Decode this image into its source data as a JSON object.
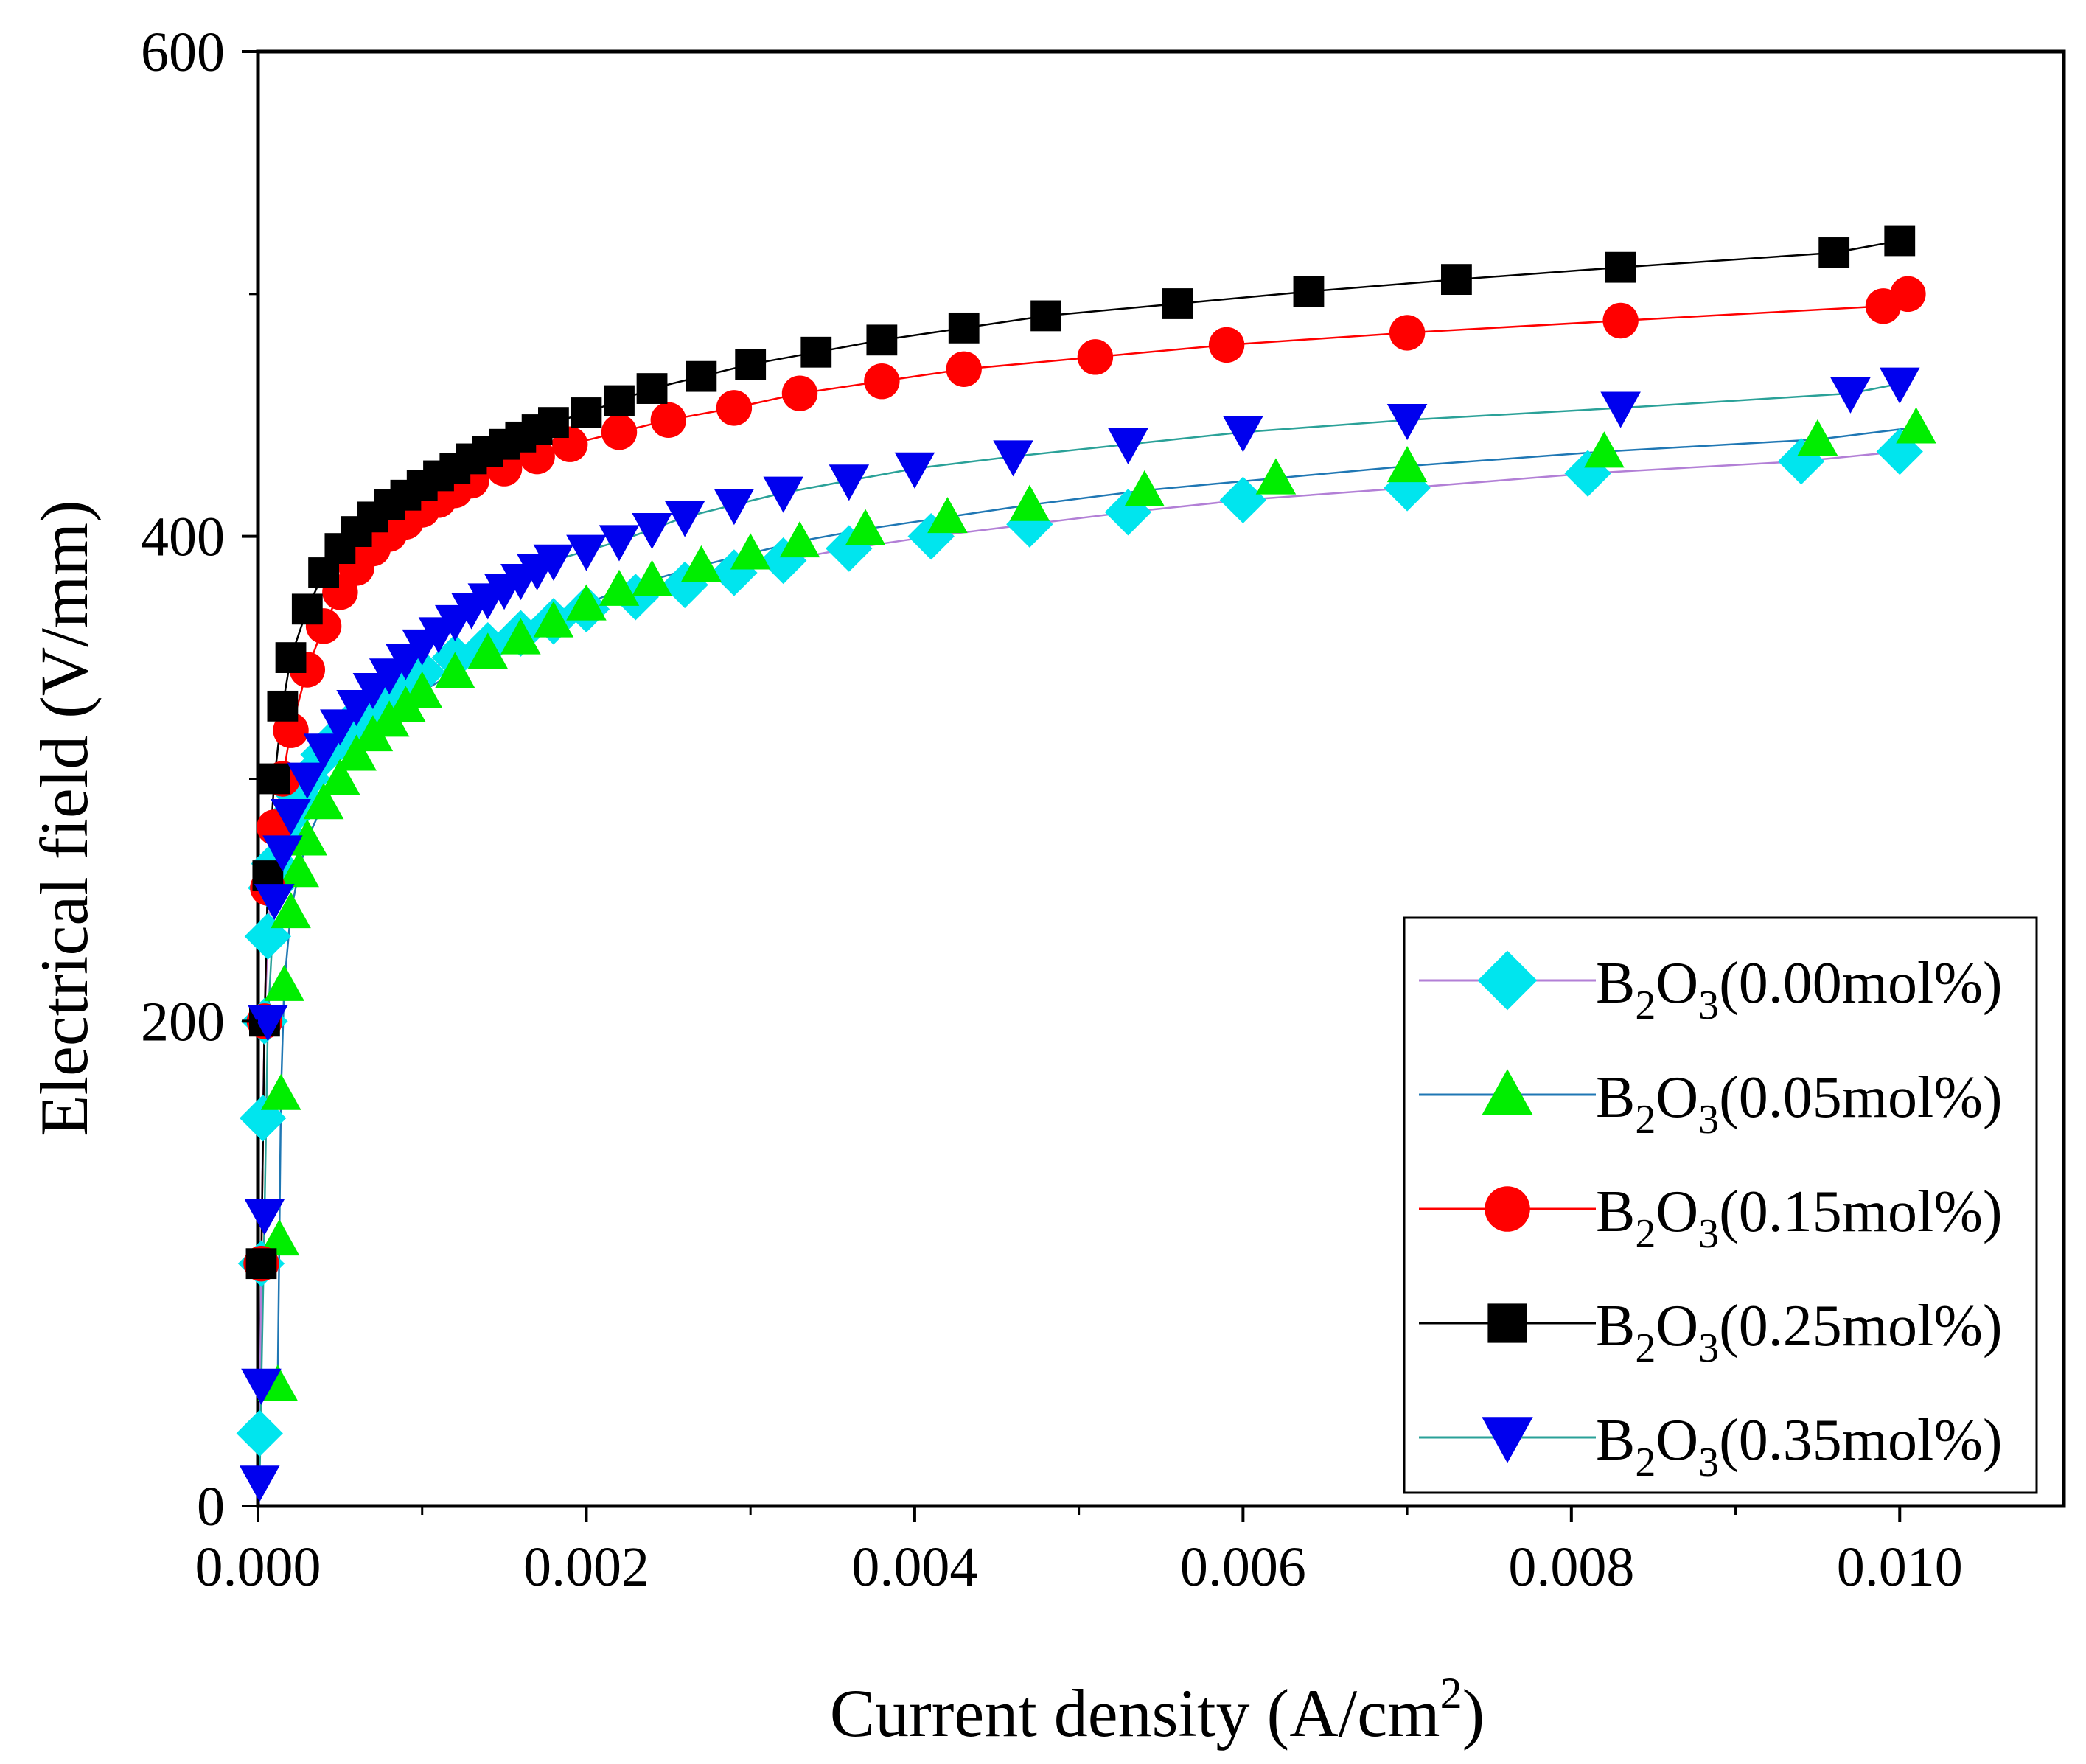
{
  "chart_data": {
    "type": "line",
    "title": "",
    "xlabel": "Current density (A/cm",
    "xlabel_superscript": "2",
    "xlabel_close": ")",
    "ylabel": "Electrical field (V/mm)",
    "xlim": [
      0,
      0.011
    ],
    "ylim": [
      0,
      600
    ],
    "xticks": [
      "0.000",
      "0.002",
      "0.004",
      "0.006",
      "0.008",
      "0.010"
    ],
    "xtick_values": [
      0,
      0.002,
      0.004,
      0.006,
      0.008,
      0.01
    ],
    "yticks": [
      "0",
      "200",
      "400",
      "600"
    ],
    "ytick_values": [
      0,
      200,
      400,
      600
    ],
    "grid": false,
    "legend_position": "bottom-right",
    "series": [
      {
        "name": "B2O3(0.00mol%)",
        "legend": {
          "base": "B",
          "sub1": "2",
          "mid": "O",
          "sub2": "3",
          "rest": "(0.00mol%)"
        },
        "marker": "diamond",
        "marker_color": "#00e5ee",
        "line_color": "#b27fd6",
        "points": [
          [
            1e-05,
            30
          ],
          [
            2e-05,
            100
          ],
          [
            3e-05,
            160
          ],
          [
            4e-05,
            200
          ],
          [
            6e-05,
            235
          ],
          [
            8e-05,
            255
          ],
          [
            0.0001,
            265
          ],
          [
            0.00015,
            277
          ],
          [
            0.0002,
            285
          ],
          [
            0.00025,
            293
          ],
          [
            0.0003,
            300
          ],
          [
            0.0004,
            310
          ],
          [
            0.0005,
            318
          ],
          [
            0.0006,
            325
          ],
          [
            0.0007,
            331
          ],
          [
            0.0008,
            336
          ],
          [
            0.0009,
            340
          ],
          [
            0.001,
            344
          ],
          [
            0.0012,
            350
          ],
          [
            0.0014,
            355
          ],
          [
            0.0016,
            360
          ],
          [
            0.0018,
            365
          ],
          [
            0.002,
            370
          ],
          [
            0.0023,
            375
          ],
          [
            0.0026,
            380
          ],
          [
            0.0029,
            385
          ],
          [
            0.0032,
            390
          ],
          [
            0.0036,
            395
          ],
          [
            0.0041,
            400
          ],
          [
            0.0047,
            405
          ],
          [
            0.0053,
            410
          ],
          [
            0.006,
            415
          ],
          [
            0.007,
            420
          ],
          [
            0.0081,
            426
          ],
          [
            0.0094,
            431
          ],
          [
            0.01,
            435
          ]
        ]
      },
      {
        "name": "B2O3(0.05mol%)",
        "legend": {
          "base": "B",
          "sub1": "2",
          "mid": "O",
          "sub2": "3",
          "rest": "(0.05mol%)"
        },
        "marker": "triangle-up",
        "marker_color": "#00ee00",
        "line_color": "#1f77b4",
        "points": [
          [
            0.00012,
            50
          ],
          [
            0.00013,
            110
          ],
          [
            0.00014,
            170
          ],
          [
            0.00016,
            215
          ],
          [
            0.0002,
            245
          ],
          [
            0.00025,
            262
          ],
          [
            0.0003,
            275
          ],
          [
            0.0004,
            290
          ],
          [
            0.0005,
            300
          ],
          [
            0.0006,
            310
          ],
          [
            0.0007,
            318
          ],
          [
            0.0008,
            324
          ],
          [
            0.0009,
            330
          ],
          [
            0.001,
            336
          ],
          [
            0.0012,
            344
          ],
          [
            0.0014,
            352
          ],
          [
            0.0016,
            358
          ],
          [
            0.0018,
            365
          ],
          [
            0.002,
            372
          ],
          [
            0.0022,
            378
          ],
          [
            0.0024,
            382
          ],
          [
            0.0027,
            388
          ],
          [
            0.003,
            393
          ],
          [
            0.0033,
            398
          ],
          [
            0.0037,
            403
          ],
          [
            0.0042,
            408
          ],
          [
            0.0047,
            413
          ],
          [
            0.0054,
            419
          ],
          [
            0.0062,
            424
          ],
          [
            0.007,
            429
          ],
          [
            0.0082,
            435
          ],
          [
            0.0095,
            440
          ],
          [
            0.0101,
            445
          ]
        ]
      },
      {
        "name": "B2O3(0.15mol%)",
        "legend": {
          "base": "B",
          "sub1": "2",
          "mid": "O",
          "sub2": "3",
          "rest": "(0.15mol%)"
        },
        "marker": "circle",
        "marker_color": "#ff0000",
        "line_color": "#ff0000",
        "points": [
          [
            2e-05,
            100
          ],
          [
            4e-05,
            200
          ],
          [
            6e-05,
            255
          ],
          [
            0.0001,
            280
          ],
          [
            0.00015,
            300
          ],
          [
            0.0002,
            320
          ],
          [
            0.0003,
            345
          ],
          [
            0.0004,
            363
          ],
          [
            0.0005,
            377
          ],
          [
            0.0006,
            387
          ],
          [
            0.0007,
            395
          ],
          [
            0.0008,
            401
          ],
          [
            0.0009,
            406
          ],
          [
            0.001,
            411
          ],
          [
            0.0011,
            415
          ],
          [
            0.0012,
            419
          ],
          [
            0.0013,
            423
          ],
          [
            0.0015,
            428
          ],
          [
            0.0017,
            433
          ],
          [
            0.0019,
            438
          ],
          [
            0.0022,
            443
          ],
          [
            0.0025,
            448
          ],
          [
            0.0029,
            453
          ],
          [
            0.0033,
            459
          ],
          [
            0.0038,
            464
          ],
          [
            0.0043,
            469
          ],
          [
            0.0051,
            474
          ],
          [
            0.0059,
            479
          ],
          [
            0.007,
            484
          ],
          [
            0.0083,
            489
          ],
          [
            0.0099,
            495
          ],
          [
            0.01005,
            500
          ]
        ]
      },
      {
        "name": "B2O3(0.25mol%)",
        "legend": {
          "base": "B",
          "sub1": "2",
          "mid": "O",
          "sub2": "3",
          "rest": "(0.25mol%)"
        },
        "marker": "square",
        "marker_color": "#000000",
        "line_color": "#000000",
        "points": [
          [
            2e-05,
            100
          ],
          [
            4e-05,
            200
          ],
          [
            6e-05,
            260
          ],
          [
            0.0001,
            300
          ],
          [
            0.00015,
            330
          ],
          [
            0.0002,
            350
          ],
          [
            0.0003,
            370
          ],
          [
            0.0004,
            385
          ],
          [
            0.0005,
            395
          ],
          [
            0.0006,
            402
          ],
          [
            0.0007,
            408
          ],
          [
            0.0008,
            413
          ],
          [
            0.0009,
            417
          ],
          [
            0.001,
            421
          ],
          [
            0.0011,
            425
          ],
          [
            0.0012,
            428
          ],
          [
            0.0013,
            432
          ],
          [
            0.0014,
            435
          ],
          [
            0.0015,
            438
          ],
          [
            0.0016,
            441
          ],
          [
            0.0017,
            444
          ],
          [
            0.0018,
            447
          ],
          [
            0.002,
            451
          ],
          [
            0.0022,
            456
          ],
          [
            0.0024,
            461
          ],
          [
            0.0027,
            466
          ],
          [
            0.003,
            471
          ],
          [
            0.0034,
            476
          ],
          [
            0.0038,
            481
          ],
          [
            0.0043,
            486
          ],
          [
            0.0048,
            491
          ],
          [
            0.0056,
            496
          ],
          [
            0.0064,
            501
          ],
          [
            0.0073,
            506
          ],
          [
            0.0083,
            511
          ],
          [
            0.0096,
            517
          ],
          [
            0.01,
            522
          ]
        ]
      },
      {
        "name": "B2O3(0.35mol%)",
        "legend": {
          "base": "B",
          "sub1": "2",
          "mid": "O",
          "sub2": "3",
          "rest": "(0.35mol%)"
        },
        "marker": "triangle-down",
        "marker_color": "#0000ee",
        "line_color": "#2aa198",
        "points": [
          [
            1e-05,
            10
          ],
          [
            2e-05,
            50
          ],
          [
            4e-05,
            120
          ],
          [
            6e-05,
            200
          ],
          [
            0.0001,
            250
          ],
          [
            0.00015,
            270
          ],
          [
            0.0002,
            285
          ],
          [
            0.0003,
            300
          ],
          [
            0.0004,
            312
          ],
          [
            0.0005,
            322
          ],
          [
            0.0006,
            330
          ],
          [
            0.0007,
            337
          ],
          [
            0.0008,
            343
          ],
          [
            0.0009,
            349
          ],
          [
            0.001,
            355
          ],
          [
            0.0011,
            360
          ],
          [
            0.0012,
            365
          ],
          [
            0.0013,
            370
          ],
          [
            0.0014,
            374
          ],
          [
            0.0015,
            378
          ],
          [
            0.0016,
            382
          ],
          [
            0.0017,
            386
          ],
          [
            0.0018,
            390
          ],
          [
            0.002,
            394
          ],
          [
            0.0022,
            398
          ],
          [
            0.0024,
            403
          ],
          [
            0.0026,
            408
          ],
          [
            0.0029,
            413
          ],
          [
            0.0032,
            418
          ],
          [
            0.0036,
            423
          ],
          [
            0.004,
            428
          ],
          [
            0.0046,
            433
          ],
          [
            0.0053,
            438
          ],
          [
            0.006,
            443
          ],
          [
            0.007,
            448
          ],
          [
            0.0083,
            453
          ],
          [
            0.0097,
            459
          ],
          [
            0.01,
            463
          ]
        ]
      }
    ]
  }
}
